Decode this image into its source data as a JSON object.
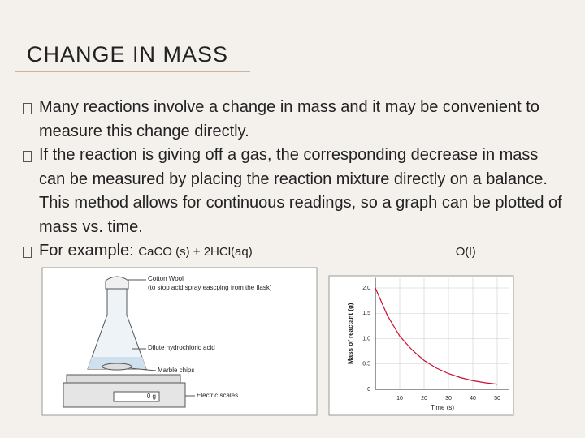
{
  "header": {
    "title": "CHANGE IN MASS"
  },
  "bullets": [
    "Many reactions involve a change in mass and it may be convenient to measure this change directly.",
    "If the reaction is giving off a gas, the corresponding decrease in mass can be measured by placing the reaction mixture directly on a balance.  This method allows for continuous readings, so a graph can be plotted of mass vs. time.",
    {
      "text": "For example:",
      "equation_left": "CaCO (s) + 2HCl(aq)",
      "equation_right": "O(l)"
    }
  ],
  "apparatus": {
    "labels": [
      "Cotton Wool",
      "(to stop acid spray eascping from the flask)",
      "Dilute hydrochloric acid",
      "Marble chips",
      "Electric scales"
    ],
    "reading": "0 g"
  },
  "graph": {
    "type": "line",
    "x_label": "Time (s)",
    "y_label": "Mass of reactant (g)",
    "x": [
      0,
      5,
      10,
      15,
      20,
      25,
      30,
      35,
      40,
      45,
      50
    ],
    "series": [
      {
        "color": "#c8102e",
        "values": [
          2.0,
          1.45,
          1.05,
          0.78,
          0.57,
          0.42,
          0.31,
          0.23,
          0.17,
          0.13,
          0.1
        ]
      }
    ],
    "xlim": [
      0,
      55
    ],
    "xticks": [
      10,
      20,
      30,
      40,
      50
    ],
    "ylim": [
      0,
      2.2
    ],
    "yticks": [
      0,
      0.5,
      {
        "value": 1,
        "label": "1.0"
      },
      1.5,
      {
        "value": 2,
        "label": "2.0"
      }
    ],
    "grid": true
  }
}
